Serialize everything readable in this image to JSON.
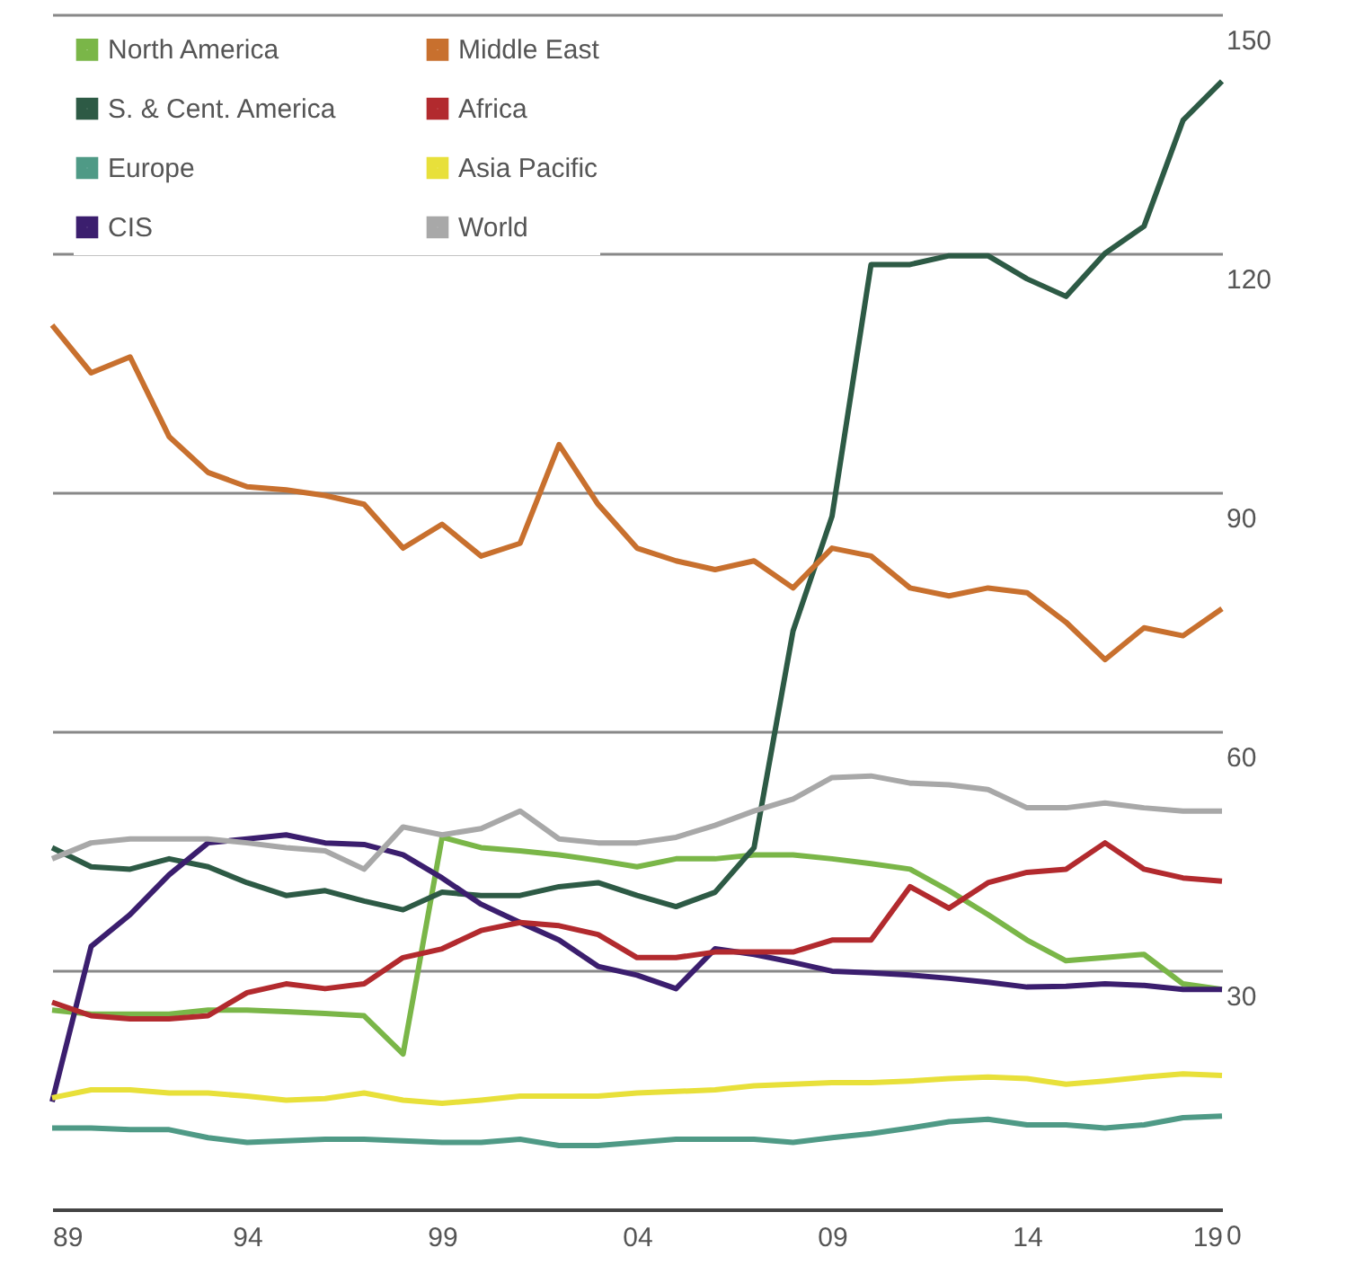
{
  "chart_data": {
    "type": "line",
    "x": [
      1989,
      1990,
      1991,
      1992,
      1993,
      1994,
      1995,
      1996,
      1997,
      1998,
      1999,
      2000,
      2001,
      2002,
      2003,
      2004,
      2005,
      2006,
      2007,
      2008,
      2009,
      2010,
      2011,
      2012,
      2013,
      2014,
      2015,
      2016,
      2017,
      2018,
      2019
    ],
    "series": [
      {
        "name": "North America",
        "color": "#7ab648",
        "values": [
          25,
          24.5,
          24.5,
          24.5,
          25,
          25,
          24.8,
          24.6,
          24.3,
          19.5,
          46.7,
          45.4,
          45,
          44.5,
          43.8,
          43,
          44,
          44,
          44.5,
          44.5,
          44,
          43.4,
          42.7,
          40,
          37,
          33.8,
          31.2,
          31.6,
          32,
          28.3,
          27.6
        ]
      },
      {
        "name": "S. & Cent. America",
        "color": "#2d5a45",
        "values": [
          45.4,
          43,
          42.7,
          44,
          43,
          41,
          39.4,
          40,
          38.7,
          37.6,
          39.8,
          39.4,
          39.4,
          40.5,
          41,
          39.4,
          38,
          39.8,
          45.4,
          72.6,
          87,
          118.6,
          118.6,
          119.7,
          119.7,
          116.8,
          114.6,
          120,
          123.4,
          136.7,
          141.6
        ]
      },
      {
        "name": "Europe",
        "color": "#4f9a86",
        "values": [
          10.2,
          10.2,
          10,
          10,
          9,
          8.4,
          8.6,
          8.8,
          8.8,
          8.6,
          8.4,
          8.4,
          8.8,
          8,
          8,
          8.4,
          8.8,
          8.8,
          8.8,
          8.4,
          9,
          9.5,
          10.2,
          11,
          11.3,
          10.6,
          10.6,
          10.2,
          10.6,
          11.5,
          11.7
        ]
      },
      {
        "name": "CIS",
        "color": "#3b1e6e",
        "values": [
          13.5,
          33,
          37,
          42,
          46,
          46.5,
          47,
          46,
          45.8,
          44.5,
          41.6,
          38.3,
          36,
          33.8,
          30.5,
          29.4,
          27.7,
          32.7,
          32,
          31,
          29.9,
          29.7,
          29.4,
          29,
          28.5,
          27.9,
          28,
          28.3,
          28.1,
          27.6,
          27.6
        ]
      },
      {
        "name": "Middle East",
        "color": "#c8702e",
        "values": [
          111,
          105,
          107,
          97,
          92.5,
          90.7,
          90.3,
          89.6,
          88.5,
          83,
          86,
          82,
          83.6,
          96,
          88.5,
          83,
          81.4,
          80.3,
          81.4,
          78,
          83,
          82,
          78,
          77,
          78,
          77.4,
          73.7,
          69,
          73,
          72,
          75.4
        ]
      },
      {
        "name": "Africa",
        "color": "#b22a2e",
        "values": [
          26,
          24.3,
          23.9,
          23.9,
          24.3,
          27.2,
          28.3,
          27.7,
          28.3,
          31.6,
          32.7,
          35,
          36,
          35.6,
          34.5,
          31.6,
          31.6,
          32.3,
          32.3,
          32.3,
          33.8,
          33.8,
          40.5,
          37.8,
          41,
          42.3,
          42.7,
          46,
          42.7,
          41.6,
          41.2
        ]
      },
      {
        "name": "Asia Pacific",
        "color": "#e8e03a",
        "values": [
          14,
          15,
          15,
          14.6,
          14.6,
          14.2,
          13.7,
          13.9,
          14.6,
          13.7,
          13.3,
          13.7,
          14.2,
          14.2,
          14.2,
          14.6,
          14.8,
          15,
          15.5,
          15.7,
          15.9,
          15.9,
          16.1,
          16.4,
          16.6,
          16.4,
          15.7,
          16.1,
          16.6,
          17,
          16.8
        ]
      },
      {
        "name": "World",
        "color": "#a8a8a8",
        "values": [
          44,
          46,
          46.5,
          46.5,
          46.5,
          46,
          45.4,
          45,
          42.7,
          48,
          47,
          47.8,
          50,
          46.5,
          46,
          46,
          46.7,
          48.2,
          50,
          51.5,
          54.2,
          54.4,
          53.5,
          53.3,
          52.7,
          50.4,
          50.4,
          51,
          50.4,
          50,
          50
        ]
      }
    ],
    "xlim": [
      1989,
      2019
    ],
    "xticks": [
      {
        "value": 1989,
        "label": "89"
      },
      {
        "value": 1994,
        "label": "94"
      },
      {
        "value": 1999,
        "label": "99"
      },
      {
        "value": 2004,
        "label": "04"
      },
      {
        "value": 2009,
        "label": "09"
      },
      {
        "value": 2014,
        "label": "14"
      },
      {
        "value": 2019,
        "label": "19"
      }
    ],
    "ylim": [
      0,
      150
    ],
    "yticks": [
      0,
      30,
      60,
      90,
      120,
      150
    ],
    "grid": "y",
    "legend": "top left",
    "marker": "none",
    "line_style": "solid"
  }
}
